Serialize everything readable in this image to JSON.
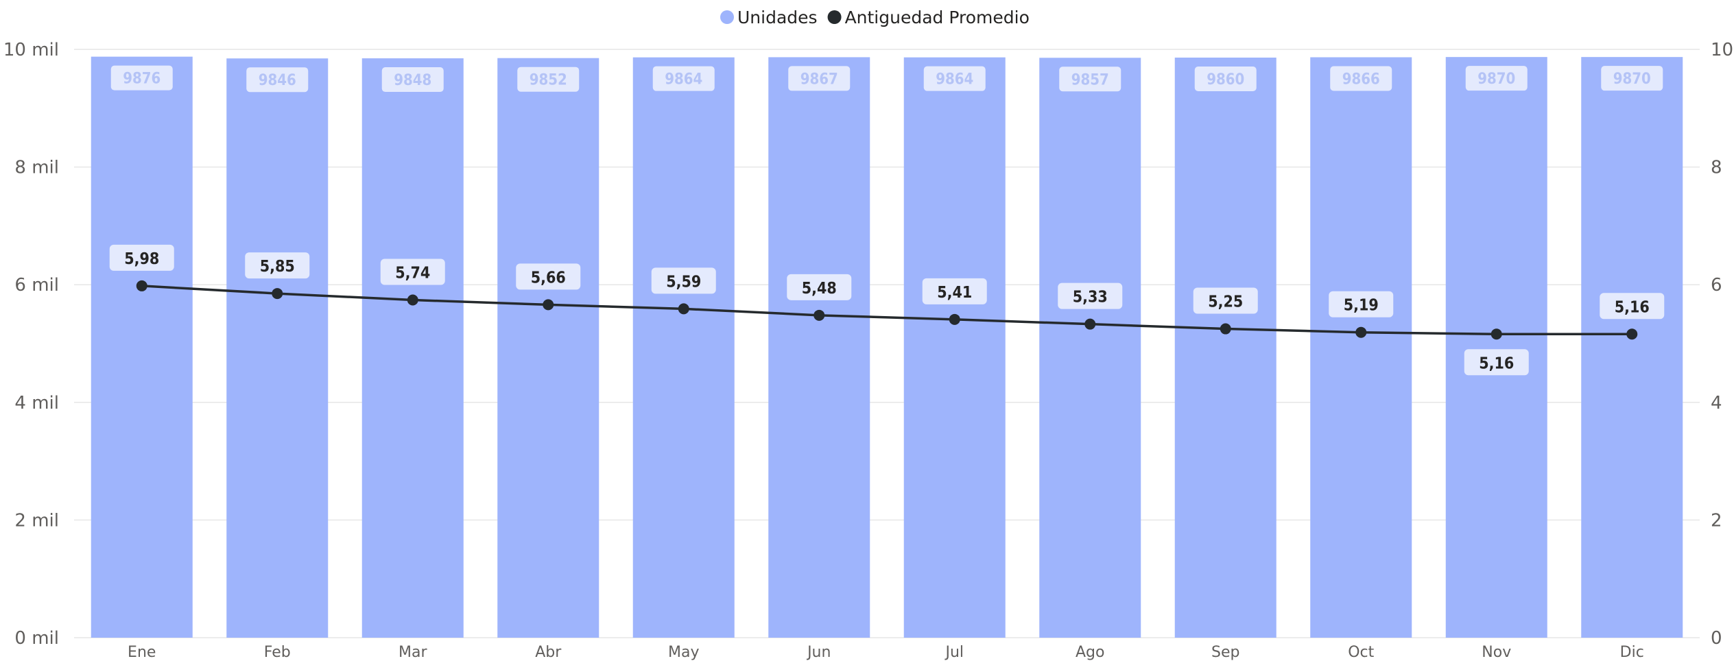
{
  "chart_data": {
    "type": "bar",
    "categories": [
      "Ene",
      "Feb",
      "Mar",
      "Abr",
      "May",
      "Jun",
      "Jul",
      "Ago",
      "Sep",
      "Oct",
      "Nov",
      "Dic"
    ],
    "series": [
      {
        "name": "Unidades",
        "type": "bar",
        "axis": "left",
        "color": "#9eb4fc",
        "values": [
          9876,
          9846,
          9848,
          9852,
          9864,
          9867,
          9864,
          9857,
          9860,
          9866,
          9870,
          9870
        ],
        "labels": [
          "9876",
          "9846",
          "9848",
          "9852",
          "9864",
          "9867",
          "9864",
          "9857",
          "9860",
          "9866",
          "9870",
          "9870"
        ]
      },
      {
        "name": "Antiguedad Promedio",
        "type": "line",
        "axis": "right",
        "color": "#252a2d",
        "values": [
          5.98,
          5.85,
          5.74,
          5.66,
          5.59,
          5.48,
          5.41,
          5.33,
          5.25,
          5.19,
          5.16,
          5.16
        ],
        "labels": [
          "5,98",
          "5,85",
          "5,74",
          "5,66",
          "5,59",
          "5,48",
          "5,41",
          "5,33",
          "5,25",
          "5,19",
          "5,16",
          "5,16"
        ]
      }
    ],
    "y_left": {
      "ylim": [
        0,
        10000
      ],
      "ticks": [
        "0 mil",
        "2 mil",
        "4 mil",
        "6 mil",
        "8 mil",
        "10 mil"
      ],
      "tick_values": [
        0,
        2000,
        4000,
        6000,
        8000,
        10000
      ]
    },
    "y_right": {
      "ylim": [
        0,
        10
      ],
      "ticks": [
        "0",
        "2",
        "4",
        "6",
        "8",
        "10"
      ],
      "tick_values": [
        0,
        2,
        4,
        6,
        8,
        10
      ]
    },
    "legend_position": "top-center",
    "grid": true,
    "title": "",
    "xlabel": "",
    "ylabel": ""
  }
}
